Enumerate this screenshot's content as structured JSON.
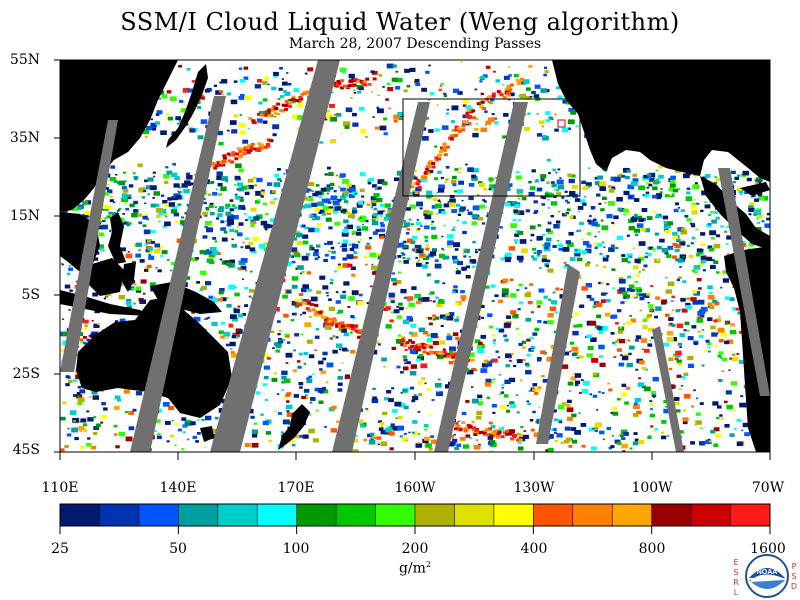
{
  "title": "SSM/I Cloud Liquid Water (Weng algorithm)",
  "subtitle": "March 28, 2007  Descending Passes",
  "lat_labels": [
    "55N",
    "35N",
    "15N",
    "5S",
    "25S",
    "45S"
  ],
  "lon_labels": [
    "110E",
    "140E",
    "170E",
    "160W",
    "130W",
    "100W",
    "70W"
  ],
  "colorbar": {
    "colors": [
      "#001a70",
      "#0033b0",
      "#0055ff",
      "#00a0a0",
      "#00cccc",
      "#00ffff",
      "#009900",
      "#00c800",
      "#33ff00",
      "#b0b000",
      "#e0e000",
      "#ffff00",
      "#ff5500",
      "#ff8000",
      "#ffa500",
      "#990000",
      "#cc0000",
      "#ff1a1a"
    ],
    "tick_labels": [
      "25",
      "50",
      "100",
      "200",
      "400",
      "800",
      "1600"
    ],
    "units": "g/m"
  },
  "logo": {
    "left_letters": "ESRL",
    "right_letters": "PSD",
    "center_text": "NOAA"
  },
  "colors": {
    "land": "#000000",
    "no_data": "#707070",
    "clear": "#ffffff"
  }
}
